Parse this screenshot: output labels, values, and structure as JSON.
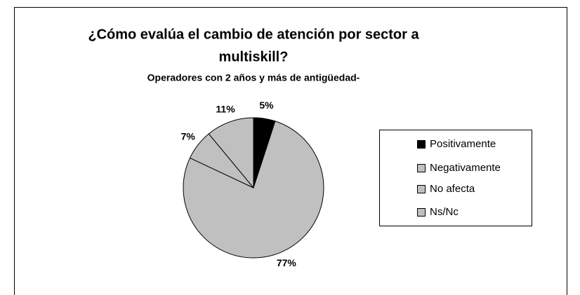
{
  "chart_data": {
    "type": "pie",
    "title": [
      "¿Cómo evalúa el cambio de atención por sector a",
      "multiskill?"
    ],
    "subtitle": "Operadores con 2 años y más de antigüedad-",
    "categories": [
      "Positivamente",
      "Negativamente",
      "No afecta",
      "Ns/Nc"
    ],
    "values": [
      5,
      77,
      7,
      11
    ],
    "value_labels": [
      "5%",
      "77%",
      "7%",
      "11%"
    ],
    "colors": [
      "#000000",
      "#c0c0c0",
      "#c0c0c0",
      "#c0c0c0"
    ],
    "legend": "right"
  }
}
